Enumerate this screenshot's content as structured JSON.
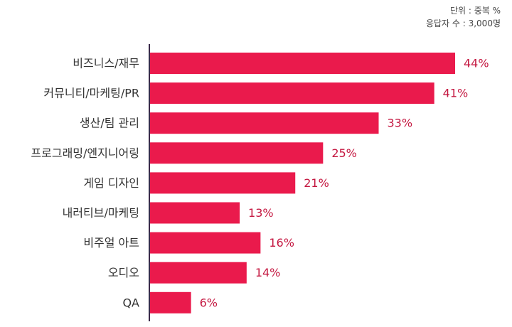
{
  "notes": {
    "unit": "단위 : 중복 %",
    "respondents": "응답자 수 : 3,000명"
  },
  "colors": {
    "bar": "#ea1a4c",
    "value_label": "#c41740",
    "category_label": "#333333",
    "axis": "#3a2a4a"
  },
  "chart_data": {
    "type": "bar",
    "orientation": "horizontal",
    "categories": [
      "비즈니스/재무",
      "커뮤니티/마케팅/PR",
      "생산/팀 관리",
      "프로그래밍/엔지니어링",
      "게임 디자인",
      "내러티브/마케팅",
      "비주얼 아트",
      "오디오",
      "QA"
    ],
    "values": [
      44,
      41,
      33,
      25,
      21,
      13,
      16,
      14,
      6
    ],
    "value_labels": [
      "44%",
      "41%",
      "33%",
      "25%",
      "21%",
      "13%",
      "16%",
      "14%",
      "6%"
    ],
    "xlim": [
      0,
      44
    ],
    "grid": false,
    "legend": "none"
  }
}
